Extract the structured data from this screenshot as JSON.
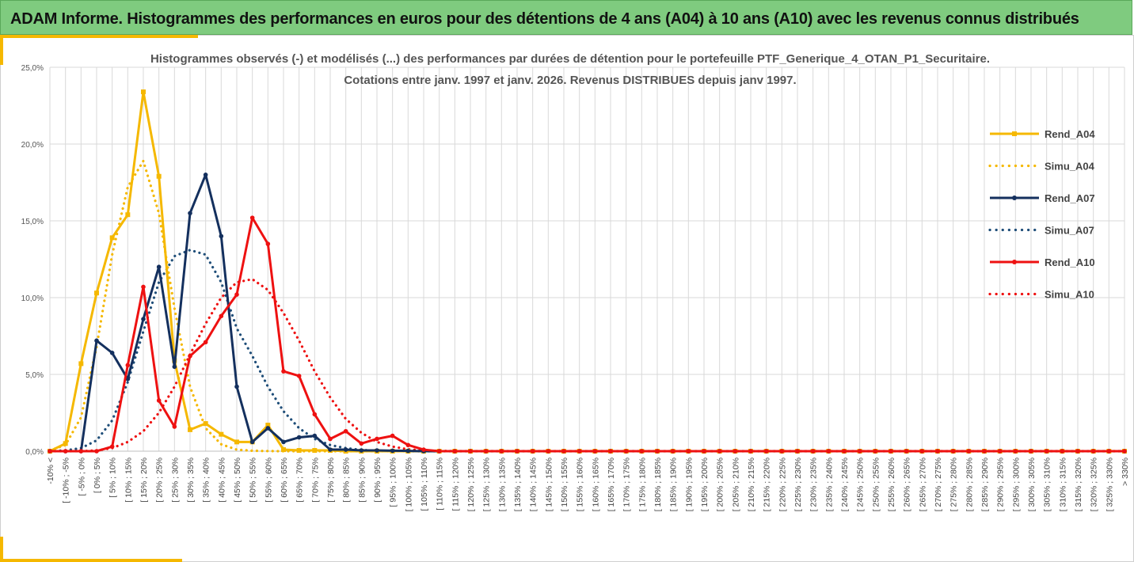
{
  "header": {
    "title": "ADAM Informe. Histogrammes des performances en euros pour des détentions de 4 ans (A04) à 10 ans (A10) avec les revenus connus distribués"
  },
  "chart_data": {
    "type": "line",
    "title": [
      "Histogrammes observés (-) et modélisés (...) des performances par durées de détention pour le portefeuille PTF_Generique_4_OTAN_P1_Securitaire.",
      "Cotations entre janv. 1997 et janv. 2026. Revenus DISTRIBUES depuis janv 1997."
    ],
    "xlabel": "",
    "ylabel": "",
    "ylim": [
      0,
      0.25
    ],
    "yticks": [
      "0,0%",
      "5,0%",
      "10,0%",
      "15,0%",
      "20,0%",
      "25,0%"
    ],
    "grid": true,
    "legend_position": "right",
    "categories": [
      "-10% <",
      "[ -10% ; -5%",
      "[ -5% ; 0%",
      "[ 0% ; 5%",
      "[ 5% ; 10%",
      "[ 10% ; 15%",
      "[ 15% ; 20%",
      "[ 20% ; 25%",
      "[ 25% ; 30%",
      "[ 30% ; 35%",
      "[ 35% ; 40%",
      "[ 40% ; 45%",
      "[ 45% ; 50%",
      "[ 50% ; 55%",
      "[ 55% ; 60%",
      "[ 60% ; 65%",
      "[ 65% ; 70%",
      "[ 70% ; 75%",
      "[ 75% ; 80%",
      "[ 80% ; 85%",
      "[ 85% ; 90%",
      "[ 90% ; 95%",
      "[ 95% ; 100%",
      "[ 100% ; 105%",
      "[ 105% ; 110%",
      "[ 110% ; 115%",
      "[ 115% ; 120%",
      "[ 120% ; 125%",
      "[ 125% ; 130%",
      "[ 130% ; 135%",
      "[ 135% ; 140%",
      "[ 140% ; 145%",
      "[ 145% ; 150%",
      "[ 150% ; 155%",
      "[ 155% ; 160%",
      "[ 160% ; 165%",
      "[ 165% ; 170%",
      "[ 170% ; 175%",
      "[ 175% ; 180%",
      "[ 180% ; 185%",
      "[ 185% ; 190%",
      "[ 190% ; 195%",
      "[ 195% ; 200%",
      "[ 200% ; 205%",
      "[ 205% ; 210%",
      "[ 210% ; 215%",
      "[ 215% ; 220%",
      "[ 220% ; 225%",
      "[ 225% ; 230%",
      "[ 230% ; 235%",
      "[ 235% ; 240%",
      "[ 240% ; 245%",
      "[ 245% ; 250%",
      "[ 250% ; 255%",
      "[ 255% ; 260%",
      "[ 260% ; 265%",
      "[ 265% ; 270%",
      "[ 270% ; 275%",
      "[ 275% ; 280%",
      "[ 280% ; 285%",
      "[ 285% ; 290%",
      "[ 290% ; 295%",
      "[ 295% ; 300%",
      "[ 300% ; 305%",
      "[ 305% ; 310%",
      "[ 310% ; 315%",
      "[ 315% ; 320%",
      "[ 320% ; 325%",
      "[ 325% ; 330%",
      "> 330%"
    ],
    "series": [
      {
        "name": "Rend_A04",
        "style": "solid",
        "marker": "square",
        "color": "#f5b800",
        "values": [
          0,
          0.005,
          0.057,
          0.103,
          0.139,
          0.154,
          0.234,
          0.179,
          0.059,
          0.014,
          0.018,
          0.011,
          0.006,
          0.006,
          0.017,
          0.001,
          0.0005,
          0.0005,
          0.0005,
          0,
          0,
          0,
          0,
          0,
          0,
          0,
          0,
          0,
          0,
          0,
          0,
          0,
          0,
          0,
          0,
          0,
          0,
          0,
          0,
          0,
          0,
          0,
          0,
          0,
          0,
          0,
          0,
          0,
          0,
          0,
          0,
          0,
          0,
          0,
          0,
          0,
          0,
          0,
          0,
          0,
          0,
          0,
          0,
          0,
          0,
          0,
          0,
          0,
          0,
          0
        ]
      },
      {
        "name": "Simu_A04",
        "style": "dotted",
        "marker": "none",
        "color": "#f5b800",
        "values": [
          0.0005,
          0.004,
          0.022,
          0.068,
          0.128,
          0.172,
          0.189,
          0.155,
          0.093,
          0.042,
          0.015,
          0.0045,
          0.001,
          0.0003,
          0.0001,
          0,
          0,
          0,
          0,
          0,
          0,
          0,
          0,
          0,
          0,
          0,
          0,
          0,
          0,
          0,
          0,
          0,
          0,
          0,
          0,
          0,
          0,
          0,
          0,
          0,
          0,
          0,
          0,
          0,
          0,
          0,
          0,
          0,
          0,
          0,
          0,
          0,
          0,
          0,
          0,
          0,
          0,
          0,
          0,
          0,
          0,
          0,
          0,
          0,
          0,
          0,
          0,
          0,
          0,
          0
        ]
      },
      {
        "name": "Rend_A07",
        "style": "solid",
        "marker": "circle",
        "color": "#14305e",
        "values": [
          0,
          0,
          0,
          0.072,
          0.064,
          0.047,
          0.086,
          0.12,
          0.055,
          0.155,
          0.18,
          0.14,
          0.042,
          0.006,
          0.015,
          0.006,
          0.009,
          0.01,
          0.001,
          0.001,
          0.0005,
          0.0005,
          0.0003,
          0.0002,
          0,
          0,
          0,
          0,
          0,
          0,
          0,
          0,
          0,
          0,
          0,
          0,
          0,
          0,
          0,
          0,
          0,
          0,
          0,
          0,
          0,
          0,
          0,
          0,
          0,
          0,
          0,
          0,
          0,
          0,
          0,
          0,
          0,
          0,
          0,
          0,
          0,
          0,
          0,
          0,
          0,
          0,
          0,
          0,
          0,
          0
        ]
      },
      {
        "name": "Simu_A07",
        "style": "dotted",
        "marker": "none",
        "color": "#1f4e79",
        "values": [
          0,
          0.0005,
          0.002,
          0.007,
          0.02,
          0.045,
          0.078,
          0.11,
          0.127,
          0.131,
          0.128,
          0.11,
          0.08,
          0.062,
          0.042,
          0.026,
          0.015,
          0.008,
          0.004,
          0.002,
          0.0008,
          0.0003,
          0.0001,
          0,
          0,
          0,
          0,
          0,
          0,
          0,
          0,
          0,
          0,
          0,
          0,
          0,
          0,
          0,
          0,
          0,
          0,
          0,
          0,
          0,
          0,
          0,
          0,
          0,
          0,
          0,
          0,
          0,
          0,
          0,
          0,
          0,
          0,
          0,
          0,
          0,
          0,
          0,
          0,
          0,
          0,
          0,
          0,
          0,
          0,
          0
        ]
      },
      {
        "name": "Rend_A10",
        "style": "solid",
        "marker": "circle",
        "color": "#ee1111",
        "values": [
          0,
          0,
          0,
          0,
          0.003,
          0.056,
          0.107,
          0.033,
          0.016,
          0.062,
          0.071,
          0.088,
          0.102,
          0.152,
          0.135,
          0.052,
          0.049,
          0.024,
          0.008,
          0.013,
          0.005,
          0.008,
          0.01,
          0.004,
          0.001,
          0,
          0,
          0,
          0,
          0,
          0,
          0,
          0,
          0,
          0,
          0,
          0,
          0,
          0,
          0,
          0,
          0,
          0,
          0,
          0,
          0,
          0,
          0,
          0,
          0,
          0,
          0,
          0,
          0,
          0,
          0,
          0,
          0,
          0,
          0,
          0,
          0,
          0,
          0,
          0,
          0,
          0,
          0,
          0,
          0
        ]
      },
      {
        "name": "Simu_A10",
        "style": "dotted",
        "marker": "none",
        "color": "#ee1111",
        "values": [
          0,
          0,
          0,
          0.0005,
          0.002,
          0.006,
          0.013,
          0.025,
          0.042,
          0.063,
          0.083,
          0.1,
          0.11,
          0.112,
          0.105,
          0.09,
          0.072,
          0.052,
          0.035,
          0.021,
          0.012,
          0.006,
          0.003,
          0.0012,
          0.0005,
          0.0002,
          0,
          0,
          0,
          0,
          0,
          0,
          0,
          0,
          0,
          0,
          0,
          0,
          0,
          0,
          0,
          0,
          0,
          0,
          0,
          0,
          0,
          0,
          0,
          0,
          0,
          0,
          0,
          0,
          0,
          0,
          0,
          0,
          0,
          0,
          0,
          0,
          0,
          0,
          0,
          0,
          0,
          0,
          0,
          0
        ]
      }
    ]
  }
}
